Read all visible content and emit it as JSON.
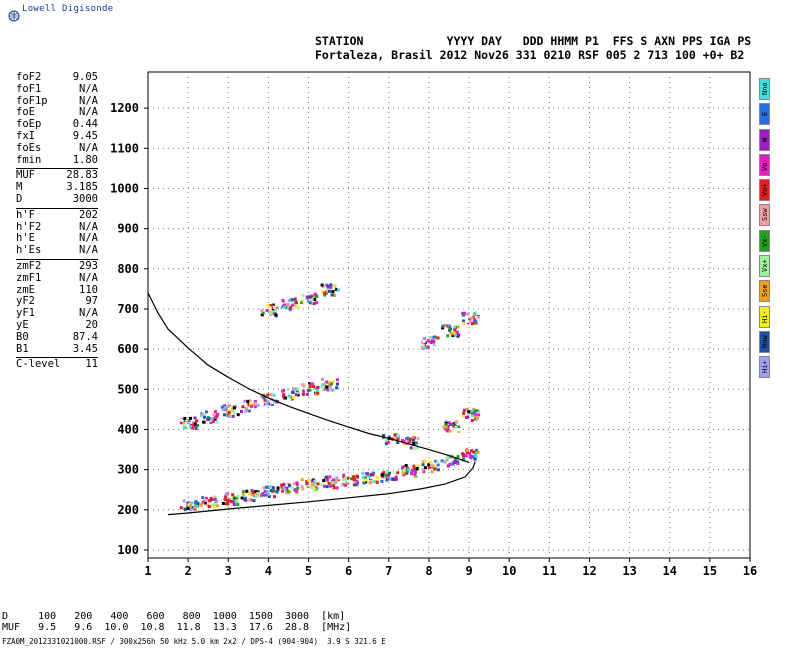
{
  "header": {
    "logo_text": "Lowell Digisonde",
    "line1": "STATION            YYYY DAY   DDD HHMM P1  FFS S AXN PPS IGA PS",
    "line2": "Fortaleza, Brasil 2012 Nov26 331 0210 RSF 005 2 713 100 +0+ B2"
  },
  "params": {
    "group1": [
      {
        "k": "foF2",
        "v": "9.05"
      },
      {
        "k": "foF1",
        "v": "N/A"
      },
      {
        "k": "foF1p",
        "v": "N/A"
      },
      {
        "k": "foE",
        "v": "N/A"
      },
      {
        "k": "foEp",
        "v": "0.44"
      },
      {
        "k": "fxI",
        "v": "9.45"
      },
      {
        "k": "foEs",
        "v": "N/A"
      },
      {
        "k": "fmin",
        "v": "1.80"
      }
    ],
    "group2": [
      {
        "k": "MUF",
        "v": "28.83"
      },
      {
        "k": "M",
        "v": "3.185"
      },
      {
        "k": "D",
        "v": "3000"
      }
    ],
    "group3": [
      {
        "k": "h'F",
        "v": "202"
      },
      {
        "k": "h'F2",
        "v": "N/A"
      },
      {
        "k": "h'E",
        "v": "N/A"
      },
      {
        "k": "h'Es",
        "v": "N/A"
      }
    ],
    "group4": [
      {
        "k": "zmF2",
        "v": "293"
      },
      {
        "k": "zmF1",
        "v": "N/A"
      },
      {
        "k": "zmE",
        "v": "110"
      },
      {
        "k": "yF2",
        "v": "97"
      },
      {
        "k": "yF1",
        "v": "N/A"
      },
      {
        "k": "yE",
        "v": "20"
      },
      {
        "k": "B0",
        "v": "87.4"
      },
      {
        "k": "B1",
        "v": "3.45"
      }
    ],
    "group5": [
      {
        "k": "C-level",
        "v": "11"
      }
    ]
  },
  "legend": [
    {
      "label": "Nno",
      "color": "#40e0e0"
    },
    {
      "label": "E",
      "color": "#2a6fe0"
    },
    {
      "label": "W",
      "color": "#9a20c0"
    },
    {
      "label": "Vo-",
      "color": "#e020c0"
    },
    {
      "label": "Vo+",
      "color": "#e02020"
    },
    {
      "label": "Ssw",
      "color": "#f0a0a0"
    },
    {
      "label": "Vx-",
      "color": "#20a020"
    },
    {
      "label": "Vx+",
      "color": "#a0f0a0"
    },
    {
      "label": "Sse",
      "color": "#f0a020"
    },
    {
      "label": "Hi-",
      "color": "#f0f020"
    },
    {
      "label": "Nnw",
      "color": "#2050a0"
    },
    {
      "label": "Hi+",
      "color": "#a0a0f0"
    }
  ],
  "bottom": {
    "d_row": "D     100   200   400   600   800  1000  1500  3000  [km]",
    "muf_row": "MUF   9.5   9.6  10.0  10.8  11.8  13.3  17.6  28.8  [MHz]",
    "footer": "FZA0M_2012331021000.RSF / 300x256h 50 kHz 5.0 km 2x2 / DPS-4 (904-904)  3.9 S 321.6 E"
  },
  "chart_data": {
    "type": "scatter",
    "title": "",
    "xlabel": "",
    "ylabel": "",
    "xlim": [
      1,
      16
    ],
    "ylim": [
      80,
      1290
    ],
    "xticks": [
      1,
      2,
      3,
      4,
      5,
      6,
      7,
      8,
      9,
      10,
      11,
      12,
      13,
      14,
      15,
      16
    ],
    "yticks": [
      100,
      200,
      300,
      400,
      500,
      600,
      700,
      800,
      900,
      1000,
      1100,
      1200
    ],
    "grid": true,
    "series": [
      {
        "kind": "curve",
        "points": [
          [
            1.0,
            740
          ],
          [
            1.25,
            690
          ],
          [
            1.5,
            650
          ],
          [
            2.0,
            603
          ],
          [
            2.5,
            560
          ],
          [
            3.0,
            530
          ],
          [
            3.5,
            502
          ],
          [
            4.0,
            478
          ],
          [
            4.5,
            458
          ],
          [
            5.0,
            440
          ],
          [
            5.5,
            422
          ],
          [
            6.0,
            406
          ],
          [
            6.5,
            390
          ],
          [
            7.0,
            378
          ],
          [
            7.5,
            364
          ],
          [
            8.0,
            350
          ],
          [
            8.5,
            335
          ],
          [
            9.0,
            318
          ]
        ]
      },
      {
        "kind": "curve",
        "points": [
          [
            1.5,
            188
          ],
          [
            2.0,
            192
          ],
          [
            3.0,
            202
          ],
          [
            4.0,
            211
          ],
          [
            5.0,
            220
          ],
          [
            6.0,
            230
          ],
          [
            7.0,
            240
          ],
          [
            7.8,
            252
          ],
          [
            8.4,
            264
          ],
          [
            8.9,
            282
          ],
          [
            9.1,
            305
          ],
          [
            9.15,
            320
          ]
        ]
      },
      {
        "kind": "clusters",
        "points": [
          [
            2.0,
            215
          ],
          [
            2.5,
            222
          ],
          [
            3.0,
            230
          ],
          [
            3.5,
            240
          ],
          [
            4.0,
            250
          ],
          [
            4.5,
            258
          ],
          [
            5.0,
            266
          ],
          [
            5.5,
            272
          ],
          [
            6.0,
            278
          ],
          [
            6.5,
            284
          ],
          [
            7.0,
            288
          ],
          [
            7.5,
            300
          ],
          [
            8.0,
            312
          ],
          [
            8.5,
            325
          ],
          [
            9.0,
            340
          ],
          [
            2.0,
            420
          ],
          [
            2.5,
            435
          ],
          [
            3.0,
            450
          ],
          [
            3.5,
            462
          ],
          [
            4.0,
            478
          ],
          [
            4.5,
            492
          ],
          [
            5.0,
            505
          ],
          [
            5.5,
            515
          ],
          [
            4.0,
            700
          ],
          [
            4.5,
            715
          ],
          [
            5.0,
            730
          ],
          [
            5.5,
            750
          ],
          [
            8.0,
            620
          ],
          [
            8.5,
            650
          ],
          [
            9.0,
            680
          ],
          [
            8.5,
            410
          ],
          [
            9.0,
            440
          ],
          [
            7.0,
            380
          ],
          [
            7.5,
            370
          ]
        ]
      }
    ]
  }
}
